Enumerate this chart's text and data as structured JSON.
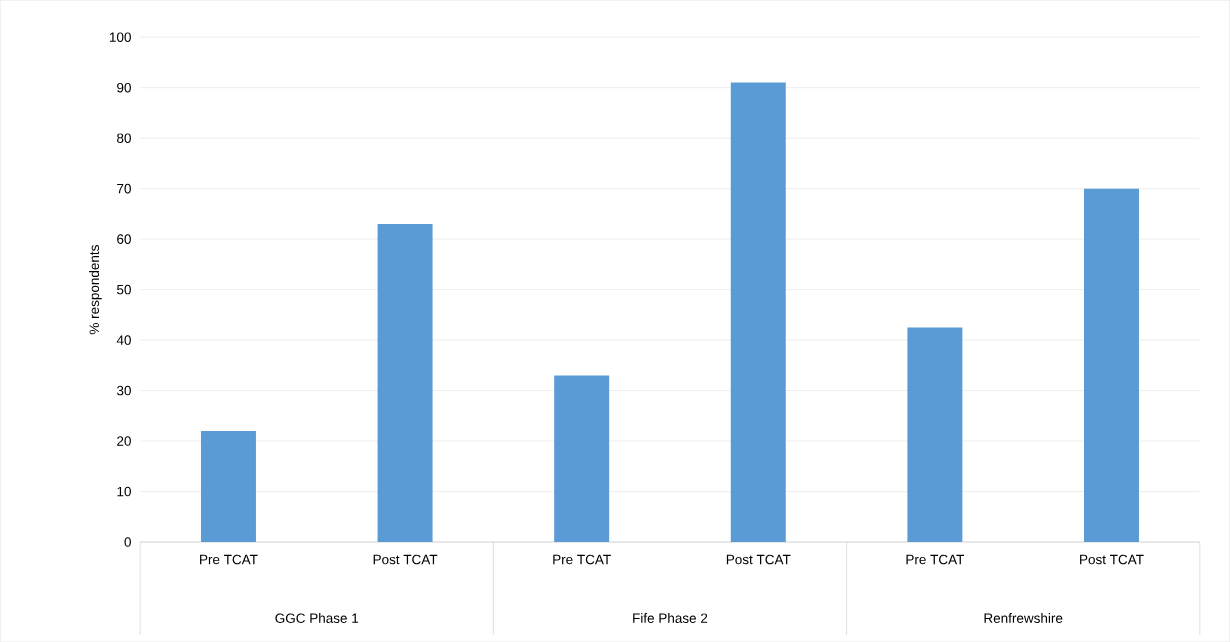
{
  "chart_data": {
    "type": "bar",
    "ylabel": "% respondents",
    "categories": [
      "Pre TCAT",
      "Post TCAT",
      "Pre TCAT",
      "Post TCAT",
      "Pre TCAT",
      "Post TCAT"
    ],
    "values": [
      22,
      63,
      33,
      91,
      42.5,
      70
    ],
    "color": "#5b9bd5",
    "ylim": [
      0,
      100
    ],
    "yticks": [
      0,
      10,
      20,
      30,
      40,
      50,
      60,
      70,
      80,
      90,
      100
    ],
    "grid": "y",
    "annotations": [
      "GGC Phase 1",
      "Fife Phase 2",
      "Renfrewshire"
    ]
  }
}
